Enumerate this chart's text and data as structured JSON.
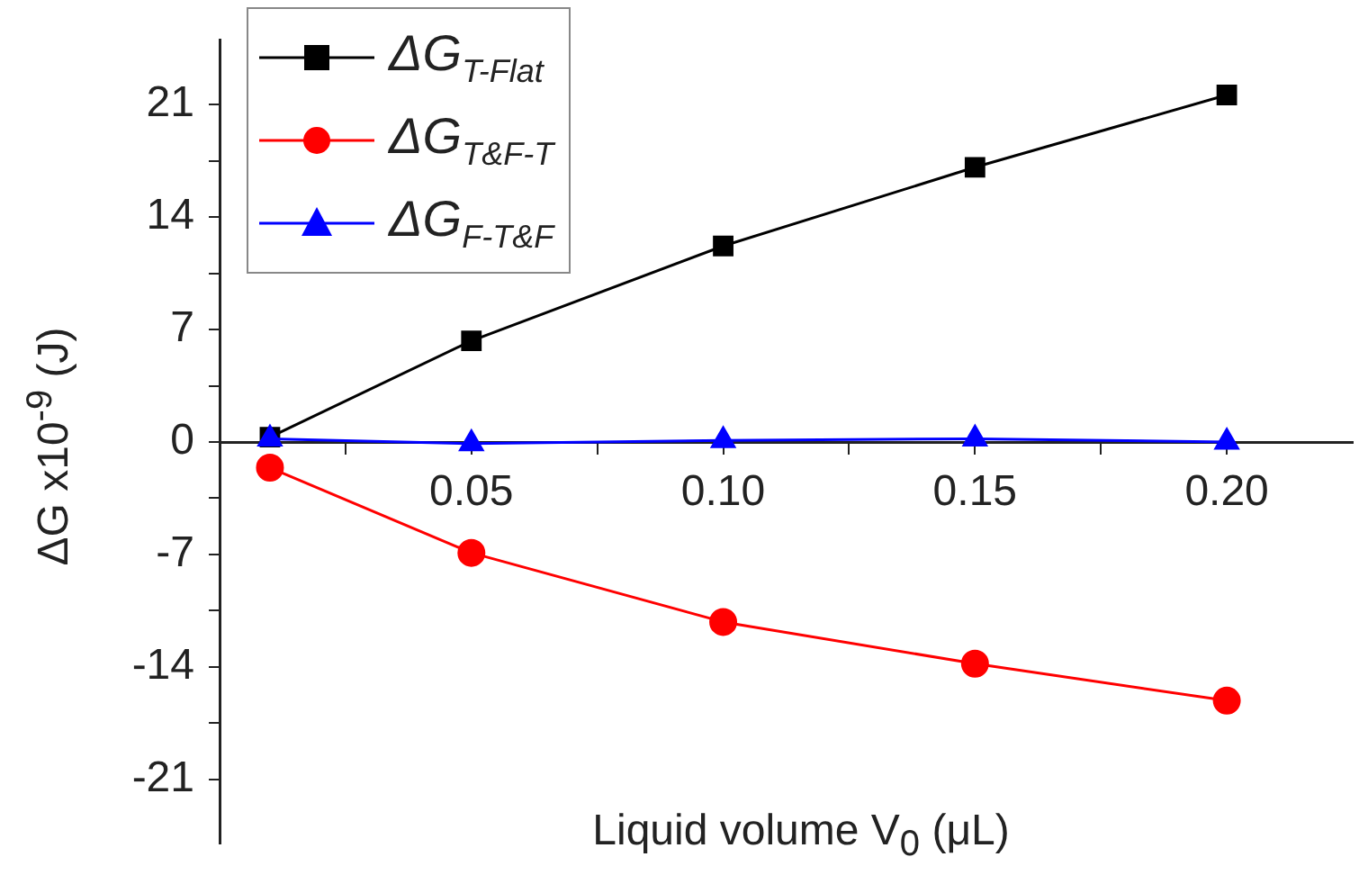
{
  "chart_data": {
    "type": "line",
    "xlabel": "Liquid volume V$_{0}$ (μL)",
    "ylabel": "ΔG x10$^{-9}$ (J)",
    "x": [
      0.01,
      0.05,
      0.1,
      0.15,
      0.2
    ],
    "series": [
      {
        "name": "ΔG$_{T-Flat}$",
        "color": "#000000",
        "marker": "square",
        "values": [
          0.3,
          6.3,
          12.2,
          17.1,
          21.6
        ]
      },
      {
        "name": "ΔG$_{T&F-T}$",
        "color": "#ff0000",
        "marker": "circle",
        "values": [
          -1.6,
          -6.9,
          -11.2,
          -13.8,
          -16.1
        ]
      },
      {
        "name": "ΔG$_{F-T&F}$",
        "color": "#0000ff",
        "marker": "triangle",
        "values": [
          0.2,
          -0.1,
          0.1,
          0.2,
          0.0
        ]
      }
    ],
    "xlim": [
      0,
      0.225
    ],
    "xticks": [
      {
        "value": 0.025,
        "label": null
      },
      {
        "value": 0.05,
        "label": "0.05"
      },
      {
        "value": 0.075,
        "label": null
      },
      {
        "value": 0.1,
        "label": "0.10"
      },
      {
        "value": 0.125,
        "label": null
      },
      {
        "value": 0.15,
        "label": "0.15"
      },
      {
        "value": 0.175,
        "label": null
      },
      {
        "value": 0.2,
        "label": "0.20"
      }
    ],
    "ylim": [
      -25,
      25
    ],
    "yticks": [
      -21,
      {
        "value": -17.5,
        "label": null
      },
      -14,
      {
        "value": -10.5,
        "label": null
      },
      -7,
      {
        "value": -3.5,
        "label": null
      },
      0,
      {
        "value": 3.5,
        "label": null
      },
      7,
      {
        "value": 10.5,
        "label": null
      },
      14,
      {
        "value": 17.5,
        "label": null
      },
      21
    ],
    "grid": false,
    "legend": "top left"
  }
}
